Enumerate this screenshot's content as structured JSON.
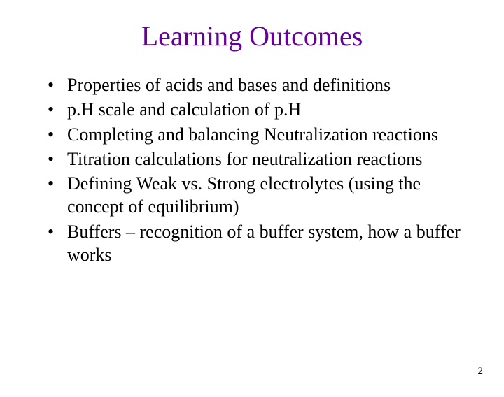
{
  "title": "Learning Outcomes",
  "title_color": "#660099",
  "title_fontsize": 40,
  "bullet_fontsize": 26,
  "bullet_color": "#000000",
  "background_color": "#ffffff",
  "bullets": [
    "Properties of acids and bases and definitions",
    "p.H scale and calculation of p.H",
    "Completing and balancing Neutralization reactions",
    "Titration calculations for neutralization reactions",
    "Defining Weak vs. Strong electrolytes (using the concept of equilibrium)",
    "Buffers – recognition of a buffer system, how a buffer works"
  ],
  "page_number": "2",
  "page_number_fontsize": 15
}
